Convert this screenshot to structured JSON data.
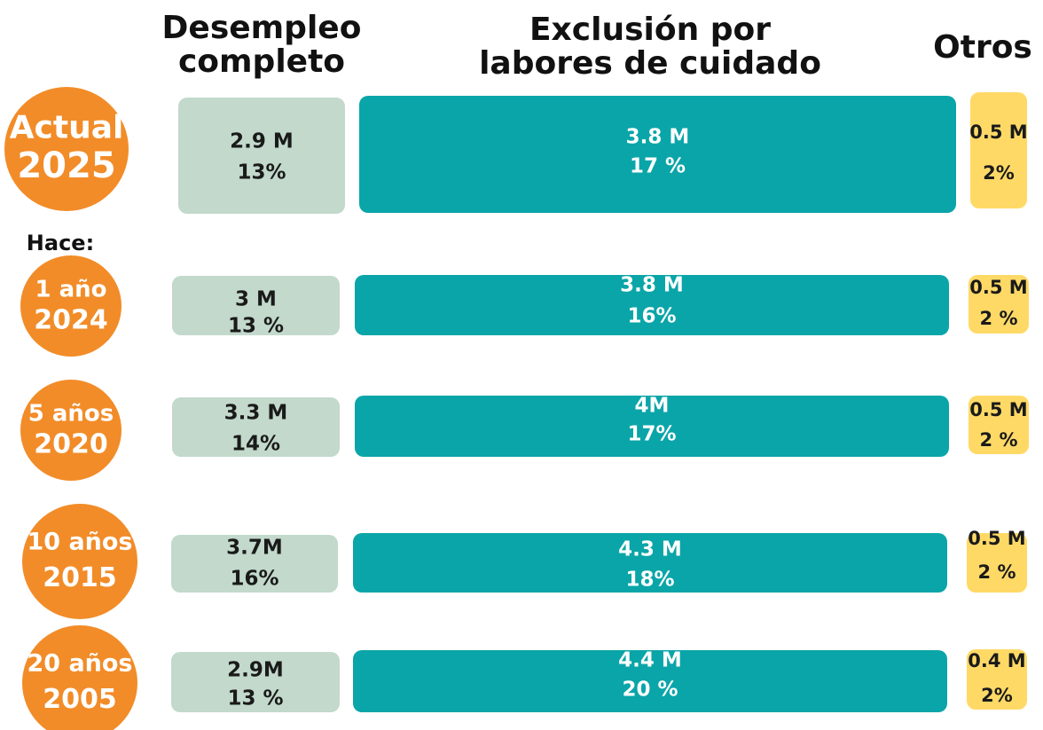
{
  "headers": [
    [
      "Desempleo",
      "completo"
    ],
    [
      "Exclusión por",
      "labores de cuidado"
    ],
    [
      "Otros"
    ]
  ],
  "hace": "Hace:",
  "rows": [
    {
      "label": [
        "Actual",
        "2025"
      ],
      "cells": [
        [
          "2.9 M",
          "13%"
        ],
        [
          "3.8 M",
          "17 %"
        ],
        [
          "0.5 M",
          "2%"
        ]
      ]
    },
    {
      "label": [
        "1 año",
        "2024"
      ],
      "cells": [
        [
          "3 M",
          "13 %"
        ],
        [
          "3.8 M",
          "16%"
        ],
        [
          "0.5 M",
          "2 %"
        ]
      ]
    },
    {
      "label": [
        "5 años",
        "2020"
      ],
      "cells": [
        [
          "3.3 M",
          "14%"
        ],
        [
          "4M",
          "17%"
        ],
        [
          "0.5 M",
          "2 %"
        ]
      ]
    },
    {
      "label": [
        "10 años",
        "2015"
      ],
      "cells": [
        [
          "3.7M",
          "16%"
        ],
        [
          "4.3 M",
          "18%"
        ],
        [
          "0.5 M",
          "2 %"
        ]
      ]
    },
    {
      "label": [
        "20 años",
        "2005"
      ],
      "cells": [
        [
          "2.9M",
          "13 %"
        ],
        [
          "4.4 M",
          "20 %"
        ],
        [
          "0.4 M",
          "2%"
        ]
      ]
    }
  ]
}
